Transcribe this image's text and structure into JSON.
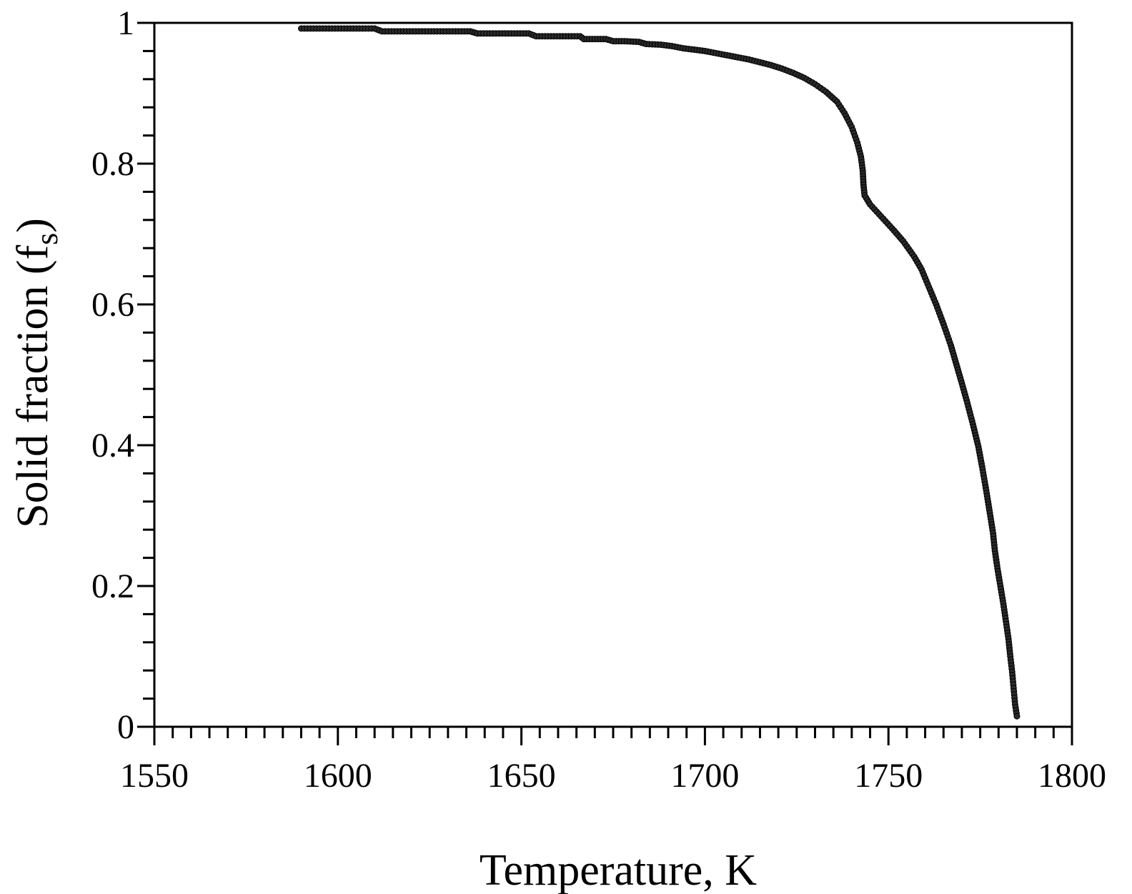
{
  "chart_data": {
    "type": "scatter",
    "title": "",
    "xlabel": "Temperature, K",
    "ylabel": {
      "main": "Solid fraction (f",
      "sub": "s",
      "close": ")"
    },
    "xlim": [
      1550,
      1800
    ],
    "ylim": [
      0,
      1
    ],
    "x_ticks": [
      1550,
      1600,
      1650,
      1700,
      1750,
      1800
    ],
    "x_tick_labels": [
      "1550",
      "1600",
      "1650",
      "1700",
      "1750",
      "1800"
    ],
    "y_ticks": [
      0,
      0.2,
      0.4,
      0.6,
      0.8,
      1
    ],
    "y_tick_labels": [
      "0",
      "0.2",
      "0.4",
      "0.6",
      "0.8",
      "1"
    ],
    "x_minor_step": 5,
    "y_minor_step": 0.04,
    "grid": false,
    "legend": "none",
    "marker_color": "#2b2b2b",
    "series": [
      {
        "points": [
          [
            1590,
            0.992
          ],
          [
            1595,
            0.992
          ],
          [
            1600,
            0.992
          ],
          [
            1605,
            0.992
          ],
          [
            1610,
            0.992
          ],
          [
            1612,
            0.988
          ],
          [
            1617,
            0.988
          ],
          [
            1622,
            0.988
          ],
          [
            1627,
            0.988
          ],
          [
            1632,
            0.988
          ],
          [
            1636,
            0.988
          ],
          [
            1638,
            0.985
          ],
          [
            1643,
            0.985
          ],
          [
            1648,
            0.985
          ],
          [
            1652,
            0.985
          ],
          [
            1654,
            0.981
          ],
          [
            1658,
            0.981
          ],
          [
            1662,
            0.981
          ],
          [
            1666,
            0.981
          ],
          [
            1667,
            0.977
          ],
          [
            1670,
            0.977
          ],
          [
            1673,
            0.977
          ],
          [
            1675,
            0.974
          ],
          [
            1678,
            0.974
          ],
          [
            1682,
            0.973
          ],
          [
            1684,
            0.97
          ],
          [
            1688,
            0.969
          ],
          [
            1691,
            0.967
          ],
          [
            1694,
            0.964
          ],
          [
            1697,
            0.962
          ],
          [
            1700,
            0.96
          ],
          [
            1703,
            0.957
          ],
          [
            1706,
            0.954
          ],
          [
            1709,
            0.951
          ],
          [
            1712,
            0.948
          ],
          [
            1715,
            0.944
          ],
          [
            1718,
            0.94
          ],
          [
            1721,
            0.935
          ],
          [
            1724,
            0.929
          ],
          [
            1727,
            0.922
          ],
          [
            1730,
            0.913
          ],
          [
            1733,
            0.902
          ],
          [
            1736,
            0.888
          ],
          [
            1738,
            0.872
          ],
          [
            1740,
            0.852
          ],
          [
            1741.5,
            0.83
          ],
          [
            1742.5,
            0.81
          ],
          [
            1743,
            0.79
          ],
          [
            1743.2,
            0.77
          ],
          [
            1743.5,
            0.755
          ],
          [
            1745,
            0.742
          ],
          [
            1748,
            0.725
          ],
          [
            1751,
            0.708
          ],
          [
            1754,
            0.69
          ],
          [
            1757,
            0.668
          ],
          [
            1759,
            0.65
          ],
          [
            1761,
            0.625
          ],
          [
            1763,
            0.6
          ],
          [
            1765,
            0.572
          ],
          [
            1767,
            0.542
          ],
          [
            1768.5,
            0.515
          ],
          [
            1770,
            0.488
          ],
          [
            1771.5,
            0.46
          ],
          [
            1773,
            0.43
          ],
          [
            1774.5,
            0.398
          ],
          [
            1775.5,
            0.37
          ],
          [
            1776.5,
            0.34
          ],
          [
            1777.5,
            0.308
          ],
          [
            1778.5,
            0.275
          ],
          [
            1779,
            0.25
          ],
          [
            1779.7,
            0.225
          ],
          [
            1780.5,
            0.2
          ],
          [
            1781.3,
            0.175
          ],
          [
            1782,
            0.15
          ],
          [
            1782.7,
            0.125
          ],
          [
            1783.2,
            0.1
          ],
          [
            1783.7,
            0.078
          ],
          [
            1784.1,
            0.055
          ],
          [
            1784.5,
            0.032
          ],
          [
            1785,
            0.015
          ]
        ]
      }
    ]
  }
}
